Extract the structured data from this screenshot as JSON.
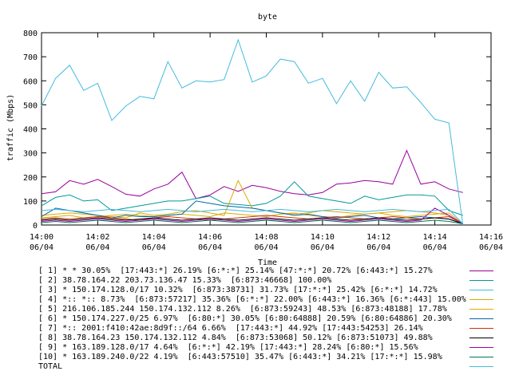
{
  "chart_data": {
    "type": "line",
    "title": "byte",
    "xlabel": "Time",
    "ylabel": "traffic (Mbps)",
    "ylim": [
      0,
      800
    ],
    "yticks": [
      "0",
      "100",
      "200",
      "300",
      "400",
      "500",
      "600",
      "700",
      "800"
    ],
    "xticks": [
      {
        "time": "14:00",
        "date": "06/04"
      },
      {
        "time": "14:02",
        "date": "06/04"
      },
      {
        "time": "14:04",
        "date": "06/04"
      },
      {
        "time": "14:06",
        "date": "06/04"
      },
      {
        "time": "14:08",
        "date": "06/04"
      },
      {
        "time": "14:10",
        "date": "06/04"
      },
      {
        "time": "14:12",
        "date": "06/04"
      },
      {
        "time": "14:14",
        "date": "06/04"
      },
      {
        "time": "14:16",
        "date": "06/04"
      }
    ],
    "xrange_minutes": [
      0,
      16
    ],
    "x": [
      0,
      0.5,
      1,
      1.5,
      2,
      2.5,
      3,
      3.5,
      4,
      4.5,
      5,
      5.5,
      6,
      6.5,
      7,
      7.5,
      8,
      8.5,
      9,
      9.5,
      10,
      10.5,
      11,
      11.5,
      12,
      12.5,
      13,
      13.5,
      14,
      14.5,
      15
    ],
    "grid": false,
    "series": [
      {
        "name": "[ 1] * * 30.05%  [17:443:*] 26.19% [6:*:*] 25.14% [47:*:*] 20.72% [6:443:*] 15.27%",
        "color": "#990099",
        "values": [
          130,
          138,
          185,
          170,
          190,
          160,
          128,
          120,
          150,
          170,
          220,
          110,
          125,
          160,
          140,
          165,
          155,
          140,
          130,
          125,
          135,
          170,
          175,
          185,
          180,
          170,
          310,
          170,
          180,
          150,
          135
        ]
      },
      {
        "name": "[ 2] 38.78.164.22 203.73.136.47 15.33%  [6:873:46668] 100.00%",
        "color": "#009999",
        "values": [
          80,
          115,
          125,
          100,
          105,
          60,
          70,
          80,
          90,
          100,
          100,
          110,
          120,
          90,
          85,
          80,
          90,
          120,
          180,
          120,
          110,
          100,
          90,
          120,
          105,
          115,
          125,
          125,
          120,
          60,
          40
        ]
      },
      {
        "name": "[ 3] * 150.174.128.0/17 10.32%  [6:873:38731] 31.73% [17:*:*] 25.42% [6:*:*] 14.72%",
        "color": "#44bbdd",
        "values": [
          495,
          610,
          665,
          560,
          590,
          435,
          495,
          535,
          525,
          680,
          570,
          600,
          595,
          605,
          770,
          595,
          620,
          690,
          680,
          590,
          610,
          505,
          600,
          515,
          635,
          570,
          575,
          510,
          440,
          425,
          0
        ]
      },
      {
        "name": "[ 4] *:: *:: 8.73%  [6:873:57217] 35.36% [6:*:*] 22.00% [6:443:*] 16.36% [6:*:443] 15.00%",
        "color": "#ddaa00",
        "values": [
          40,
          45,
          50,
          45,
          40,
          35,
          30,
          50,
          40,
          45,
          55,
          60,
          50,
          40,
          185,
          70,
          60,
          50,
          45,
          50,
          60,
          55,
          50,
          45,
          50,
          55,
          60,
          55,
          50,
          40,
          5
        ]
      },
      {
        "name": "[ 5] 216.106.185.244 150.174.132.112 8.26%  [6:873:59243] 48.53% [6:873:48188] 17.78%",
        "color": "#ddaa00",
        "values": [
          30,
          35,
          40,
          30,
          35,
          40,
          45,
          40,
          35,
          40,
          45,
          40,
          35,
          50,
          45,
          40,
          35,
          45,
          50,
          40,
          35,
          30,
          40,
          45,
          50,
          40,
          35,
          40,
          45,
          50,
          5
        ]
      },
      {
        "name": "[ 6] * 150.174.227.0/25 6.97%  [6:80:*] 30.05% [6:80:64888] 20.59% [6:80:64886] 20.30%",
        "color": "#0066aa",
        "values": [
          35,
          70,
          60,
          50,
          40,
          30,
          40,
          35,
          35,
          40,
          45,
          100,
          90,
          80,
          75,
          70,
          60,
          50,
          40,
          45,
          35,
          30,
          35,
          40,
          30,
          25,
          30,
          35,
          30,
          25,
          5
        ]
      },
      {
        "name": "[ 7] *:: 2001:f410:42ae:8d9f::/64 6.66%  [17:443:*] 44.92% [17:443:54253] 26.14%",
        "color": "#cc3300",
        "values": [
          25,
          30,
          25,
          30,
          35,
          30,
          25,
          20,
          30,
          35,
          30,
          25,
          20,
          25,
          30,
          35,
          40,
          35,
          30,
          25,
          30,
          35,
          30,
          25,
          30,
          35,
          30,
          25,
          30,
          35,
          5
        ]
      },
      {
        "name": "[ 8] 38.78.164.23 150.174.132.112 4.84%  [6:873:53068] 50.12% [6:873:51073] 49.88%",
        "color": "#000000",
        "values": [
          20,
          25,
          20,
          25,
          30,
          25,
          20,
          25,
          30,
          25,
          20,
          25,
          30,
          25,
          20,
          25,
          30,
          25,
          20,
          25,
          30,
          25,
          20,
          25,
          30,
          25,
          20,
          25,
          30,
          25,
          5
        ]
      },
      {
        "name": "[ 9] * 163.189.128.0/17 4.64%  [6:*:*] 42.19% [17:443:*] 28.24% [6:80:*] 15.56%",
        "color": "#aa00aa",
        "values": [
          15,
          20,
          15,
          20,
          25,
          20,
          15,
          20,
          25,
          20,
          15,
          20,
          25,
          20,
          15,
          20,
          25,
          20,
          15,
          20,
          25,
          20,
          15,
          20,
          25,
          20,
          15,
          20,
          70,
          40,
          5
        ]
      },
      {
        "name": "[10] * 163.189.240.0/22 4.19%  [6:443:57510] 35.47% [6:443:*] 34.21% [17:*:*] 15.98%",
        "color": "#007755",
        "values": [
          10,
          15,
          10,
          15,
          20,
          15,
          10,
          15,
          20,
          15,
          10,
          15,
          20,
          15,
          10,
          15,
          20,
          15,
          10,
          15,
          20,
          15,
          10,
          15,
          20,
          15,
          10,
          15,
          20,
          15,
          5
        ]
      },
      {
        "name": "TOTAL",
        "color": "#44bbdd",
        "values": [
          60,
          65,
          60,
          55,
          60,
          65,
          60,
          55,
          60,
          65,
          60,
          55,
          60,
          65,
          60,
          55,
          60,
          65,
          60,
          55,
          60,
          65,
          60,
          55,
          60,
          65,
          60,
          55,
          60,
          65,
          5
        ]
      }
    ]
  }
}
